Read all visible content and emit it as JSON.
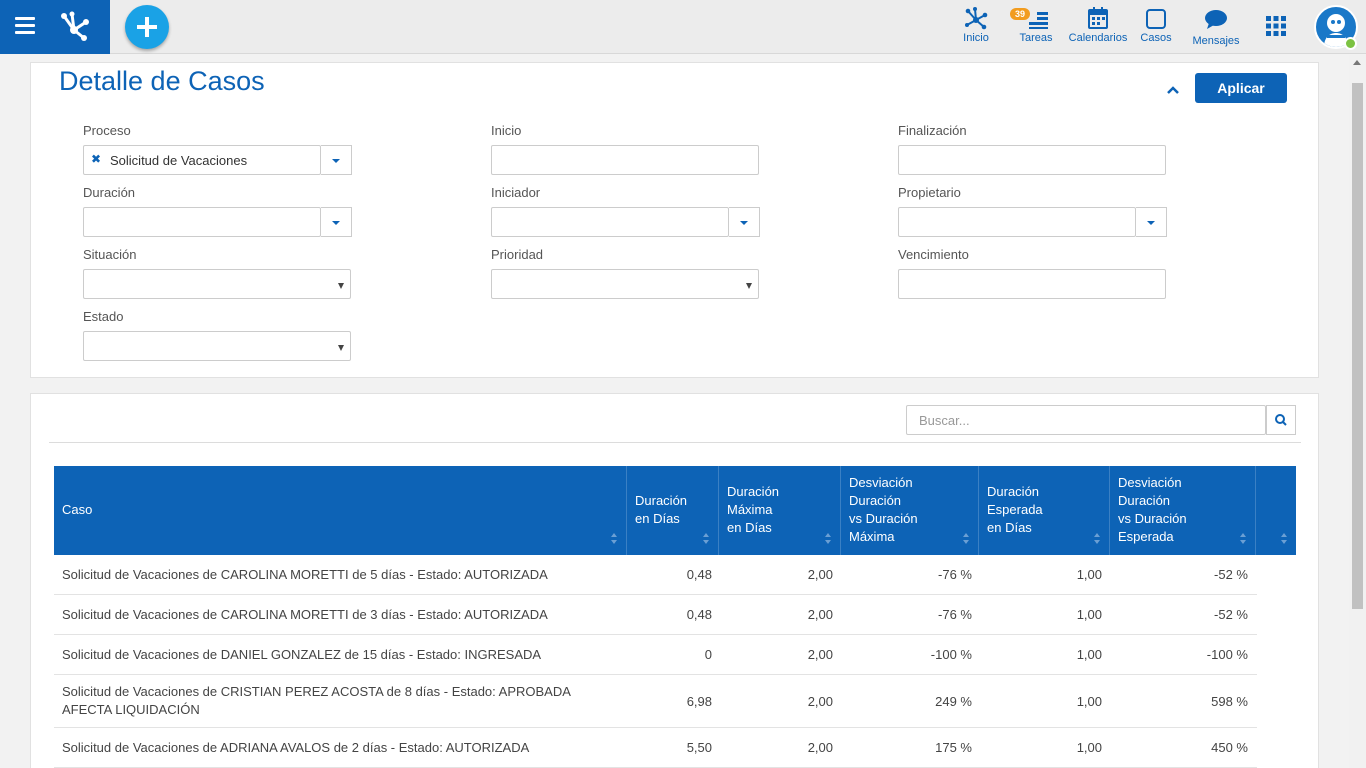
{
  "topbar": {
    "nav": [
      {
        "label": "Inicio",
        "icon": "process-icon"
      },
      {
        "label": "Tareas",
        "icon": "tasks-icon",
        "badge": "39"
      },
      {
        "label": "Calendarios",
        "icon": "calendar-icon"
      },
      {
        "label": "Casos",
        "icon": "cases-icon"
      },
      {
        "label": "Mensajes",
        "icon": "messages-icon"
      }
    ]
  },
  "page": {
    "title": "Detalle de Casos",
    "apply_label": "Aplicar"
  },
  "filters": {
    "proceso": {
      "label": "Proceso",
      "value": "Solicitud de Vacaciones"
    },
    "inicio": {
      "label": "Inicio",
      "value": ""
    },
    "finalizacion": {
      "label": "Finalización",
      "value": ""
    },
    "duracion": {
      "label": "Duración",
      "value": ""
    },
    "iniciador": {
      "label": "Iniciador",
      "value": ""
    },
    "propietario": {
      "label": "Propietario",
      "value": ""
    },
    "situacion": {
      "label": "Situación",
      "value": ""
    },
    "prioridad": {
      "label": "Prioridad",
      "value": ""
    },
    "vencimiento": {
      "label": "Vencimiento",
      "value": ""
    },
    "estado": {
      "label": "Estado",
      "value": ""
    }
  },
  "search": {
    "placeholder": "Buscar..."
  },
  "table": {
    "columns": [
      "Caso",
      "Duración\nen Días",
      "Duración\nMáxima\nen Días",
      "Desviación\nDuración\nvs Duración\nMáxima",
      "Duración\nEsperada\nen Días",
      "Desviación\nDuración\nvs Duración\nEsperada"
    ],
    "rows": [
      {
        "caso": "Solicitud de Vacaciones de CAROLINA MORETTI de 5 días - Estado: AUTORIZADA",
        "dur": "0,48",
        "max": "2,00",
        "desv_max": "-76 %",
        "esp": "1,00",
        "desv_esp": "-52 %"
      },
      {
        "caso": "Solicitud de Vacaciones de CAROLINA MORETTI de 3 días - Estado: AUTORIZADA",
        "dur": "0,48",
        "max": "2,00",
        "desv_max": "-76 %",
        "esp": "1,00",
        "desv_esp": "-52 %"
      },
      {
        "caso": "Solicitud de Vacaciones de DANIEL GONZALEZ de 15 días - Estado: INGRESADA",
        "dur": "0",
        "max": "2,00",
        "desv_max": "-100 %",
        "esp": "1,00",
        "desv_esp": "-100 %"
      },
      {
        "caso": "Solicitud de Vacaciones de CRISTIAN PEREZ ACOSTA de 8 días - Estado: APROBADA AFECTA LIQUIDACIÓN",
        "dur": "6,98",
        "max": "2,00",
        "desv_max": "249 %",
        "esp": "1,00",
        "desv_esp": "598 %"
      },
      {
        "caso": "Solicitud de Vacaciones de ADRIANA AVALOS de 2 días - Estado: AUTORIZADA",
        "dur": "5,50",
        "max": "2,00",
        "desv_max": "175 %",
        "esp": "1,00",
        "desv_esp": "450 %"
      }
    ]
  },
  "colors": {
    "primary": "#0d63b6",
    "accent": "#1aa2e6",
    "badge": "#f29c1f",
    "online": "#7cc242"
  }
}
